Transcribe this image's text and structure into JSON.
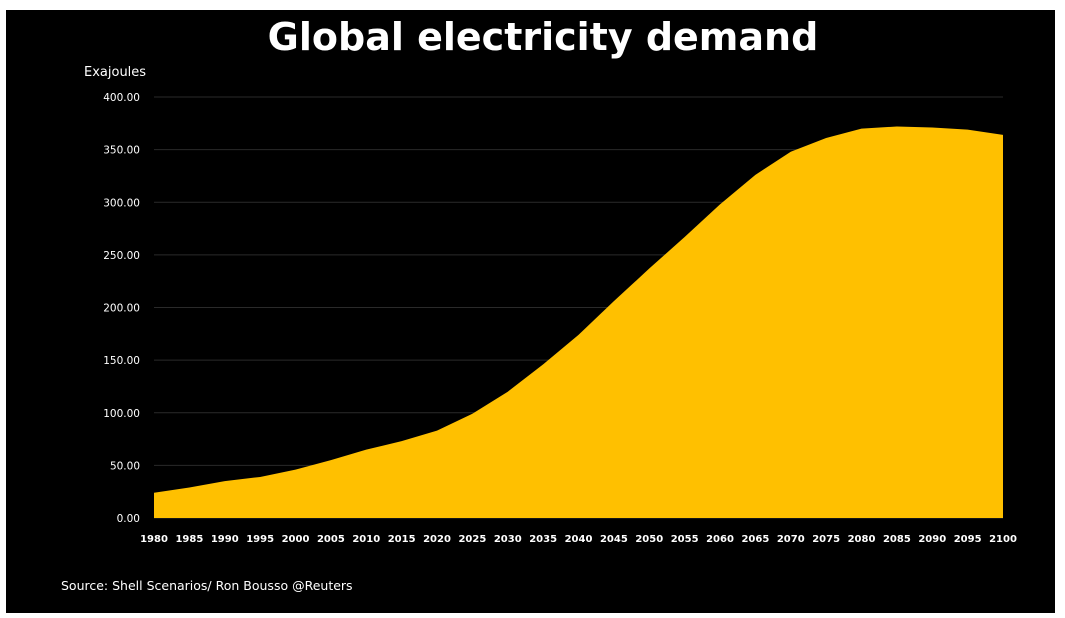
{
  "chart_data": {
    "type": "area",
    "title": "Global electricity demand",
    "ylabel": "Exajoules",
    "xlabel": "",
    "x": [
      "1980",
      "1985",
      "1990",
      "1995",
      "2000",
      "2005",
      "2010",
      "2015",
      "2020",
      "2025",
      "2030",
      "2035",
      "2040",
      "2045",
      "2050",
      "2055",
      "2060",
      "2065",
      "2070",
      "2075",
      "2080",
      "2085",
      "2090",
      "2095",
      "2100"
    ],
    "series": [
      {
        "values": [
          24,
          29,
          35,
          39,
          46,
          55,
          65,
          73,
          83,
          99,
          120,
          146,
          174,
          206,
          237,
          267,
          298,
          326,
          348,
          361,
          370,
          372,
          371,
          369,
          364
        ]
      }
    ],
    "ylim": [
      0,
      400
    ],
    "yticks": [
      "0.00",
      "50.00",
      "100.00",
      "150.00",
      "200.00",
      "250.00",
      "300.00",
      "350.00",
      "400.00"
    ],
    "grid": true,
    "legend": "none",
    "source": "Source: Shell Scenarios/ Ron Bousso @Reuters",
    "colors": {
      "background": "#000000",
      "area": "#FFC000",
      "text": "#ffffff",
      "grid": "#2a2a2a"
    }
  }
}
